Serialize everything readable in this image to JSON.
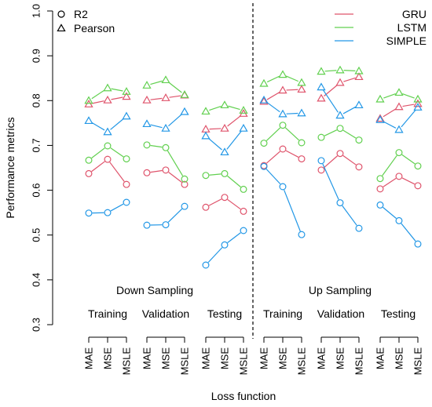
{
  "chart_data": {
    "type": "line",
    "ylabel": "Performance metrics",
    "xlabel": "Loss function",
    "ylim": [
      0.3,
      1.0
    ],
    "yticks": [
      "0.3",
      "0.4",
      "0.5",
      "0.6",
      "0.7",
      "0.8",
      "0.9",
      "1.0"
    ],
    "ytick_values": [
      0.3,
      0.4,
      0.5,
      0.6,
      0.7,
      0.8,
      0.9,
      1.0
    ],
    "grid": false,
    "legend_metrics": {
      "placement": "top-left",
      "entries": [
        {
          "name": "R2",
          "marker": "circle"
        },
        {
          "name": "Pearson",
          "marker": "triangle"
        }
      ]
    },
    "legend_models": {
      "placement": "top-right",
      "entries": [
        {
          "name": "GRU",
          "color": "#DF536B"
        },
        {
          "name": "LSTM",
          "color": "#61D04F"
        },
        {
          "name": "SIMPLE",
          "color": "#2297E6"
        }
      ]
    },
    "sampling_labels": [
      "Down Sampling",
      "Up Sampling"
    ],
    "split_labels": [
      "Training",
      "Validation",
      "Testing",
      "Training",
      "Validation",
      "Testing"
    ],
    "categories": [
      "MAE",
      "MSE",
      "MSLE"
    ],
    "colors": {
      "GRU": "#DF536B",
      "LSTM": "#61D04F",
      "SIMPLE": "#2297E6"
    },
    "groups": [
      {
        "sampling": "Down Sampling",
        "split": "Training",
        "series": [
          {
            "name": "GRU",
            "metric": "Pearson",
            "values": [
              0.792,
              0.801,
              0.809
            ]
          },
          {
            "name": "LSTM",
            "metric": "Pearson",
            "values": [
              0.8,
              0.828,
              0.82
            ]
          },
          {
            "name": "SIMPLE",
            "metric": "Pearson",
            "values": [
              0.755,
              0.73,
              0.765
            ]
          },
          {
            "name": "GRU",
            "metric": "R2",
            "values": [
              0.637,
              0.669,
              0.613
            ]
          },
          {
            "name": "LSTM",
            "metric": "R2",
            "values": [
              0.667,
              0.699,
              0.67
            ]
          },
          {
            "name": "SIMPLE",
            "metric": "R2",
            "values": [
              0.549,
              0.55,
              0.573
            ]
          }
        ]
      },
      {
        "sampling": "Down Sampling",
        "split": "Validation",
        "series": [
          {
            "name": "GRU",
            "metric": "Pearson",
            "values": [
              0.801,
              0.806,
              0.812
            ]
          },
          {
            "name": "LSTM",
            "metric": "Pearson",
            "values": [
              0.834,
              0.846,
              0.813
            ]
          },
          {
            "name": "SIMPLE",
            "metric": "Pearson",
            "values": [
              0.748,
              0.738,
              0.775
            ]
          },
          {
            "name": "GRU",
            "metric": "R2",
            "values": [
              0.639,
              0.645,
              0.613
            ]
          },
          {
            "name": "LSTM",
            "metric": "R2",
            "values": [
              0.701,
              0.695,
              0.625
            ]
          },
          {
            "name": "SIMPLE",
            "metric": "R2",
            "values": [
              0.522,
              0.523,
              0.564
            ]
          }
        ]
      },
      {
        "sampling": "Down Sampling",
        "split": "Testing",
        "series": [
          {
            "name": "GRU",
            "metric": "Pearson",
            "values": [
              0.736,
              0.738,
              0.771
            ]
          },
          {
            "name": "LSTM",
            "metric": "Pearson",
            "values": [
              0.776,
              0.79,
              0.778
            ]
          },
          {
            "name": "SIMPLE",
            "metric": "Pearson",
            "values": [
              0.721,
              0.685,
              0.738
            ]
          },
          {
            "name": "GRU",
            "metric": "R2",
            "values": [
              0.562,
              0.584,
              0.553
            ]
          },
          {
            "name": "LSTM",
            "metric": "R2",
            "values": [
              0.633,
              0.637,
              0.602
            ]
          },
          {
            "name": "SIMPLE",
            "metric": "R2",
            "values": [
              0.433,
              0.478,
              0.51
            ]
          }
        ]
      },
      {
        "sampling": "Up Sampling",
        "split": "Training",
        "series": [
          {
            "name": "GRU",
            "metric": "Pearson",
            "values": [
              0.798,
              0.823,
              0.825
            ]
          },
          {
            "name": "LSTM",
            "metric": "Pearson",
            "values": [
              0.838,
              0.858,
              0.84
            ]
          },
          {
            "name": "SIMPLE",
            "metric": "Pearson",
            "values": [
              0.801,
              0.77,
              0.772
            ]
          },
          {
            "name": "GRU",
            "metric": "R2",
            "values": [
              0.655,
              0.692,
              0.67
            ]
          },
          {
            "name": "LSTM",
            "metric": "R2",
            "values": [
              0.705,
              0.745,
              0.706
            ]
          },
          {
            "name": "SIMPLE",
            "metric": "R2",
            "values": [
              0.653,
              0.608,
              0.501
            ]
          }
        ]
      },
      {
        "sampling": "Up Sampling",
        "split": "Validation",
        "series": [
          {
            "name": "GRU",
            "metric": "Pearson",
            "values": [
              0.805,
              0.84,
              0.853
            ]
          },
          {
            "name": "LSTM",
            "metric": "Pearson",
            "values": [
              0.865,
              0.868,
              0.866
            ]
          },
          {
            "name": "SIMPLE",
            "metric": "Pearson",
            "values": [
              0.83,
              0.767,
              0.79
            ]
          },
          {
            "name": "GRU",
            "metric": "R2",
            "values": [
              0.645,
              0.682,
              0.652
            ]
          },
          {
            "name": "LSTM",
            "metric": "R2",
            "values": [
              0.718,
              0.738,
              0.712
            ]
          },
          {
            "name": "SIMPLE",
            "metric": "R2",
            "values": [
              0.666,
              0.572,
              0.515
            ]
          }
        ]
      },
      {
        "sampling": "Up Sampling",
        "split": "Testing",
        "series": [
          {
            "name": "GRU",
            "metric": "Pearson",
            "values": [
              0.76,
              0.786,
              0.793
            ]
          },
          {
            "name": "LSTM",
            "metric": "Pearson",
            "values": [
              0.803,
              0.818,
              0.803
            ]
          },
          {
            "name": "SIMPLE",
            "metric": "Pearson",
            "values": [
              0.757,
              0.735,
              0.785
            ]
          },
          {
            "name": "GRU",
            "metric": "R2",
            "values": [
              0.603,
              0.631,
              0.61
            ]
          },
          {
            "name": "LSTM",
            "metric": "R2",
            "values": [
              0.626,
              0.684,
              0.654
            ]
          },
          {
            "name": "SIMPLE",
            "metric": "R2",
            "values": [
              0.567,
              0.532,
              0.48
            ]
          }
        ]
      }
    ]
  }
}
